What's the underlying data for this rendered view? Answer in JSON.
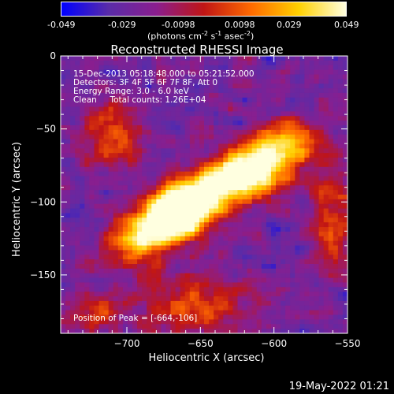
{
  "colorbar": {
    "ticks": [
      "-0.049",
      "-0.029",
      "-0.0098",
      "0.0098",
      "0.029",
      "0.049"
    ],
    "unit_label": "(photons cm",
    "unit_sup1": "-2",
    "unit_mid": " s",
    "unit_sup2": "-1",
    "unit_end": " asec",
    "unit_sup3": "-2",
    "unit_close": ")"
  },
  "chart_data": {
    "type": "heatmap",
    "title": "Reconstructed RHESSI Image",
    "xlabel": "Heliocentric X (arcsec)",
    "ylabel": "Heliocentric Y (arcsec)",
    "xlim": [
      -745,
      -550
    ],
    "ylim": [
      -190,
      0
    ],
    "xticks": [
      -700,
      -650,
      -600,
      -550
    ],
    "yticks": [
      0,
      -50,
      -100,
      -150
    ],
    "xtick_labels": [
      "−700",
      "−650",
      "−600",
      "−550"
    ],
    "ytick_labels": [
      "0",
      "−50",
      "−100",
      "−150"
    ],
    "value_range": [
      -0.049,
      0.049
    ],
    "peak": [
      -664,
      -106
    ],
    "colormap": [
      "#0000ff",
      "#5a2ca8",
      "#8a1e8e",
      "#c01515",
      "#ff6a00",
      "#ffd000",
      "#ffffe0"
    ],
    "annotations": {
      "line1": "15-Dec-2013 05:18:48.000 to 05:21:52.000",
      "line2": "Detectors: 3F 4F 5F 6F 7F 8F, Att 0",
      "line3": "Energy Range: 3.0 - 6.0 keV",
      "line4": "Clean     Total counts: 1.26E+04",
      "peak_label": "Position of Peak = [-664,-106]"
    }
  },
  "footer": "19-May-2022 01:21"
}
